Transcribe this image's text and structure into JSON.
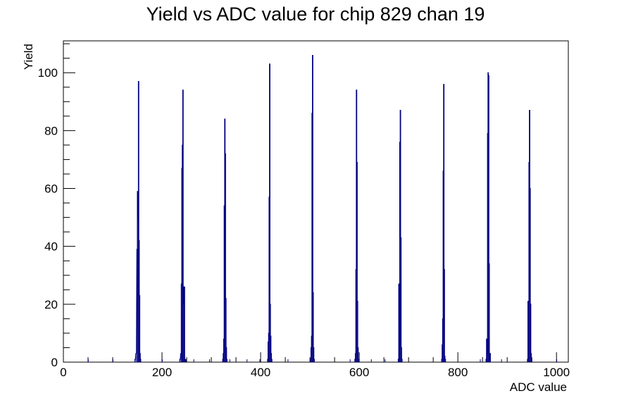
{
  "chart_data": {
    "type": "histogram",
    "title": "Yield vs ADC value for chip 829 chan 19",
    "xlabel": "ADC value",
    "ylabel": "Yield",
    "xlim": [
      0,
      1024
    ],
    "ylim": [
      0,
      111
    ],
    "xticks": [
      0,
      200,
      400,
      600,
      800,
      1000
    ],
    "yticks": [
      0,
      20,
      40,
      60,
      80,
      100
    ],
    "grid": false,
    "legend": "none",
    "line_color": "#000080",
    "series": [
      {
        "peaks": [
          {
            "bins": [
              [
                145,
                1
              ],
              [
                147,
                3
              ],
              [
                149,
                39
              ],
              [
                150,
                59
              ],
              [
                151,
                49
              ],
              [
                152,
                97
              ],
              [
                153,
                42
              ],
              [
                154,
                23
              ],
              [
                155,
                3
              ],
              [
                156,
                1
              ]
            ]
          },
          {
            "bins": [
              [
                236,
                1
              ],
              [
                238,
                3
              ],
              [
                239,
                27
              ],
              [
                240,
                67
              ],
              [
                241,
                75
              ],
              [
                242,
                94
              ],
              [
                243,
                26
              ],
              [
                244,
                20
              ],
              [
                245,
                26
              ],
              [
                246,
                1
              ]
            ]
          },
          {
            "bins": [
              [
                323,
                1
              ],
              [
                324,
                3
              ],
              [
                325,
                8
              ],
              [
                326,
                54
              ],
              [
                327,
                84
              ],
              [
                328,
                72
              ],
              [
                329,
                22
              ],
              [
                330,
                5
              ],
              [
                331,
                1
              ]
            ]
          },
          {
            "bins": [
              [
                414,
                1
              ],
              [
                415,
                7
              ],
              [
                416,
                10
              ],
              [
                417,
                57
              ],
              [
                418,
                103
              ],
              [
                419,
                20
              ],
              [
                420,
                9
              ],
              [
                421,
                3
              ],
              [
                422,
                1
              ]
            ]
          },
          {
            "bins": [
              [
                501,
                1
              ],
              [
                502,
                5
              ],
              [
                503,
                9
              ],
              [
                504,
                86
              ],
              [
                505,
                106
              ],
              [
                506,
                24
              ],
              [
                507,
                5
              ],
              [
                508,
                1
              ]
            ]
          },
          {
            "bins": [
              [
                591,
                1
              ],
              [
                592,
                3
              ],
              [
                593,
                32
              ],
              [
                594,
                94
              ],
              [
                595,
                69
              ],
              [
                596,
                21
              ],
              [
                597,
                5
              ],
              [
                598,
                1
              ]
            ]
          },
          {
            "bins": [
              [
                679,
                1
              ],
              [
                680,
                27
              ],
              [
                681,
                14
              ],
              [
                682,
                76
              ],
              [
                683,
                87
              ],
              [
                684,
                43
              ],
              [
                685,
                5
              ],
              [
                686,
                1
              ]
            ]
          },
          {
            "bins": [
              [
                767,
                1
              ],
              [
                768,
                6
              ],
              [
                769,
                15
              ],
              [
                770,
                66
              ],
              [
                771,
                96
              ],
              [
                772,
                32
              ],
              [
                773,
                2
              ],
              [
                774,
                1
              ]
            ]
          },
          {
            "bins": [
              [
                857,
                1
              ],
              [
                858,
                8
              ],
              [
                859,
                3
              ],
              [
                860,
                79
              ],
              [
                861,
                100
              ],
              [
                862,
                99
              ],
              [
                863,
                34
              ],
              [
                864,
                1
              ],
              [
                865,
                3
              ]
            ]
          },
          {
            "bins": [
              [
                941,
                1
              ],
              [
                942,
                21
              ],
              [
                943,
                21
              ],
              [
                944,
                69
              ],
              [
                945,
                87
              ],
              [
                946,
                60
              ],
              [
                947,
                20
              ],
              [
                948,
                3
              ],
              [
                949,
                1
              ]
            ]
          }
        ],
        "isolated": [
          [
            50,
            1
          ],
          [
            100,
            1
          ],
          [
            200,
            1
          ],
          [
            248,
            1
          ],
          [
            264,
            1
          ],
          [
            296,
            1
          ],
          [
            337,
            1
          ],
          [
            372,
            1
          ],
          [
            398,
            1
          ],
          [
            455,
            1
          ],
          [
            581,
            1
          ],
          [
            624,
            1
          ],
          [
            652,
            1
          ],
          [
            845,
            1
          ],
          [
            888,
            1
          ],
          [
            1000,
            1
          ]
        ]
      }
    ]
  }
}
